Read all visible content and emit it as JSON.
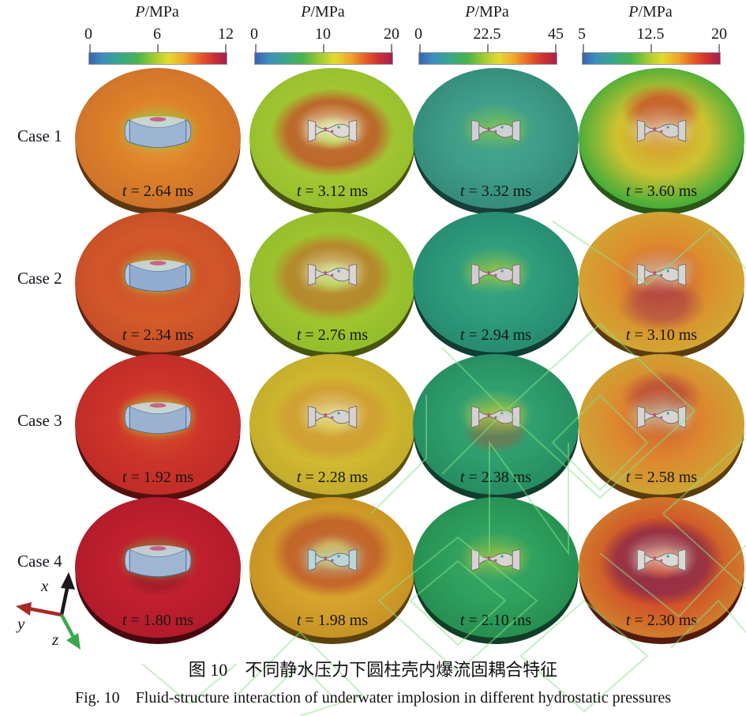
{
  "figure": {
    "caption_zh": "图 10　不同静水压力下圆柱壳内爆流固耦合特征",
    "caption_en": "Fig. 10　Fluid-structure interaction of underwater implosion in different hydrostatic pressures"
  },
  "colorbars": [
    {
      "title_symbol": "P",
      "title_unit": "/MPa",
      "ticks": [
        "0",
        "6",
        "12"
      ]
    },
    {
      "title_symbol": "P",
      "title_unit": "/MPa",
      "ticks": [
        "0",
        "10",
        "20"
      ]
    },
    {
      "title_symbol": "P",
      "title_unit": "/MPa",
      "ticks": [
        "0",
        "22.5",
        "45"
      ]
    },
    {
      "title_symbol": "P",
      "title_unit": "/MPa",
      "ticks": [
        "5",
        "12.5",
        "20"
      ]
    }
  ],
  "colorbar_gradient": [
    "#3b63ae",
    "#3aa68e",
    "#49b44c",
    "#e4dc2e",
    "#f0a22c",
    "#e4552a",
    "#a42150"
  ],
  "axes_triad": {
    "x": "x",
    "y": "y",
    "z": "z",
    "x_color": "#1a1a1a",
    "y_color": "#a62a28",
    "z_color": "#3aa84c"
  },
  "watermark_color": "#85e585",
  "grid": {
    "rows": [
      {
        "case_label": "Case 1",
        "cells": [
          {
            "time_symbol": "t",
            "time_text": "= 2.64 ms",
            "disc": {
              "glow": "rgba(150,196,60,0.80)",
              "accent": "rgba(0,0,0,0)",
              "mid": "#e89a3c",
              "base": "#dd8128",
              "edge": "#d0742b",
              "rim": "#5e3710",
              "shell": "#9cb5d3"
            }
          },
          {
            "time_symbol": "t",
            "time_text": "= 3.12 ms",
            "disc": {
              "glow": "rgba(240,234,208,0.80)",
              "accent": "rgba(196,70,40,0.72)",
              "mid": "#b2cc3a",
              "base": "#a6c832",
              "edge": "#98c02e",
              "rim": "#49570e",
              "shell": "#ddd9d5"
            }
          },
          {
            "time_symbol": "t",
            "time_text": "= 3.32 ms",
            "disc": {
              "glow": "rgba(132,200,76,0.72)",
              "accent": "rgba(0,0,0,0)",
              "mid": "#46a68c",
              "base": "#3f9e88",
              "edge": "#358d7a",
              "rim": "#153f38",
              "shell": "#cdd1d5"
            }
          },
          {
            "time_symbol": "t",
            "time_text": "= 3.60 ms",
            "disc": {
              "glow": "rgba(224,208,176,0.67)",
              "accent": "rgba(194,58,40,0.66)",
              "mid": "#d8952e",
              "base": "#cfc231",
              "edge": "#4cae38",
              "rim": "#2a5816",
              "shell": "#d5d1cd"
            }
          }
        ]
      },
      {
        "case_label": "Case 2",
        "cells": [
          {
            "time_symbol": "t",
            "time_text": "= 2.34 ms",
            "disc": {
              "glow": "rgba(160,196,60,0.67)",
              "accent": "rgba(200,69,40,0.40)",
              "mid": "#e07a32",
              "base": "#d55c2a",
              "edge": "#c94f28",
              "rim": "#5e2410",
              "shell": "#92add0"
            }
          },
          {
            "time_symbol": "t",
            "time_text": "= 2.76 ms",
            "disc": {
              "glow": "rgba(232,224,192,0.67)",
              "accent": "rgba(196,80,40,0.50)",
              "mid": "#aeca36",
              "base": "#a2c62e",
              "edge": "#94be2c",
              "rim": "#47550e",
              "shell": "#d9d5d1"
            }
          },
          {
            "time_symbol": "t",
            "time_text": "= 2.94 ms",
            "disc": {
              "glow": "rgba(168,204,60,0.69)",
              "accent": "rgba(0,0,0,0)",
              "mid": "#38a482",
              "base": "#2f9c7c",
              "edge": "#288c70",
              "rim": "#113d32",
              "shell": "#d2cdd2"
            }
          },
          {
            "time_symbol": "t",
            "time_text": "= 3.10 ms",
            "disc": {
              "glow": "rgba(208,208,176,0.67)",
              "accent": "rgba(138,30,88,0.40)",
              "mid": "#ce4a2e",
              "base": "#dd8c2e",
              "edge": "#d2a432",
              "rim": "#5c3c0e",
              "shell": "#d8d4d0"
            }
          }
        ]
      },
      {
        "case_label": "Case 3",
        "cells": [
          {
            "time_symbol": "t",
            "time_text": "= 1.92 ms",
            "disc": {
              "glow": "rgba(176,200,56,0.73)",
              "accent": "rgba(0,0,0,0)",
              "mid": "#d8542c",
              "base": "#cd342a",
              "edge": "#c22d28",
              "rim": "#54100c",
              "shell": "#9ab2d0"
            }
          },
          {
            "time_symbol": "t",
            "time_text": "= 2.28 ms",
            "disc": {
              "glow": "rgba(232,216,176,0.67)",
              "accent": "rgba(204,118,52,0.39)",
              "mid": "#d8c438",
              "base": "#d2bc30",
              "edge": "#c4ae2c",
              "rim": "#5e500f",
              "shell": "#d6d2ce"
            }
          },
          {
            "time_symbol": "t",
            "time_text": "= 2.38 ms",
            "disc": {
              "glow": "rgba(194,204,60,0.69)",
              "accent": "rgba(194,60,40,0.33)",
              "mid": "#38a676",
              "base": "#2f9e6e",
              "edge": "#278e62",
              "rim": "#113e2c",
              "shell": "#d4d0d4"
            }
          },
          {
            "time_symbol": "t",
            "time_text": "= 2.58 ms",
            "disc": {
              "glow": "rgba(200,208,176,0.67)",
              "accent": "rgba(156,32,60,0.44)",
              "mid": "#d06030",
              "base": "#dd8830",
              "edge": "#cfa232",
              "rim": "#5c3c0e",
              "shell": "#d8d4d0"
            }
          }
        ]
      },
      {
        "case_label": "Case 4",
        "cells": [
          {
            "time_symbol": "t",
            "time_text": "= 1.80 ms",
            "disc": {
              "glow": "rgba(112,180,60,0.53)",
              "accent": "rgba(122,16,36,0.38)",
              "mid": "#c42834",
              "base": "#c01f2e",
              "edge": "#b31c2c",
              "rim": "#47080e",
              "shell": "#9fb6d2"
            }
          },
          {
            "time_symbol": "t",
            "time_text": "= 1.98 ms",
            "disc": {
              "glow": "rgba(184,208,192,0.67)",
              "accent": "rgba(180,54,40,0.56)",
              "mid": "#dcae34",
              "base": "#d6a42c",
              "edge": "#c89426",
              "rim": "#5c430e",
              "shell": "#bcd6d8"
            }
          },
          {
            "time_symbol": "t",
            "time_text": "= 2.10 ms",
            "disc": {
              "glow": "rgba(184,204,60,0.60)",
              "accent": "rgba(0,0,0,0)",
              "mid": "#3aa868",
              "base": "#2fa05e",
              "edge": "#279052",
              "rim": "#113e26",
              "shell": "#d6d3d0"
            }
          },
          {
            "time_symbol": "t",
            "time_text": "= 2.30 ms",
            "disc": {
              "glow": "rgba(224,208,192,0.67)",
              "accent": "rgba(110,32,88,0.56)",
              "mid": "#c83c2a",
              "base": "#d24e28",
              "edge": "#d07a2c",
              "rim": "#551a0c",
              "shell": "#dcd8d4"
            }
          }
        ]
      }
    ]
  }
}
